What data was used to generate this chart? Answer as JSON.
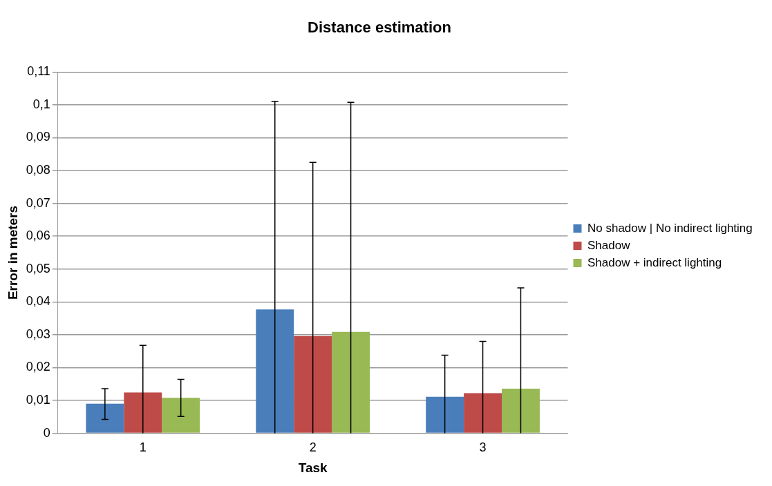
{
  "chart_data": {
    "type": "bar",
    "title": "Distance estimation",
    "xlabel": "Task",
    "ylabel": "Error in meters",
    "categories": [
      "1",
      "2",
      "3"
    ],
    "series": [
      {
        "name": "No shadow | No indirect lighting",
        "color": "#4a7ebb",
        "values": [
          0.009,
          0.0377,
          0.0111
        ],
        "errors": [
          [
            0.0042,
            0.0136
          ],
          [
            0,
            0.1011
          ],
          [
            0,
            0.0238
          ]
        ]
      },
      {
        "name": "Shadow",
        "color": "#be4b48",
        "values": [
          0.0124,
          0.0296,
          0.0122
        ],
        "errors": [
          [
            0,
            0.0268
          ],
          [
            0,
            0.0825
          ],
          [
            0,
            0.028
          ]
        ]
      },
      {
        "name": "Shadow + indirect lighting",
        "color": "#98b954",
        "values": [
          0.0108,
          0.0309,
          0.0136
        ],
        "errors": [
          [
            0.0051,
            0.0164
          ],
          [
            0,
            0.1008
          ],
          [
            0,
            0.0443
          ]
        ]
      }
    ],
    "ylim": [
      0,
      0.11
    ],
    "yticks": [
      {
        "value": 0,
        "label": "0"
      },
      {
        "value": 0.01,
        "label": "0,01"
      },
      {
        "value": 0.02,
        "label": "0,02"
      },
      {
        "value": 0.03,
        "label": "0,03"
      },
      {
        "value": 0.04,
        "label": "0,04"
      },
      {
        "value": 0.05,
        "label": "0,05"
      },
      {
        "value": 0.06,
        "label": "0,06"
      },
      {
        "value": 0.07,
        "label": "0,07"
      },
      {
        "value": 0.08,
        "label": "0,08"
      },
      {
        "value": 0.09,
        "label": "0,09"
      },
      {
        "value": 0.1,
        "label": "0,1"
      },
      {
        "value": 0.11,
        "label": "0,11"
      }
    ],
    "grid": "y",
    "legend": "right"
  }
}
